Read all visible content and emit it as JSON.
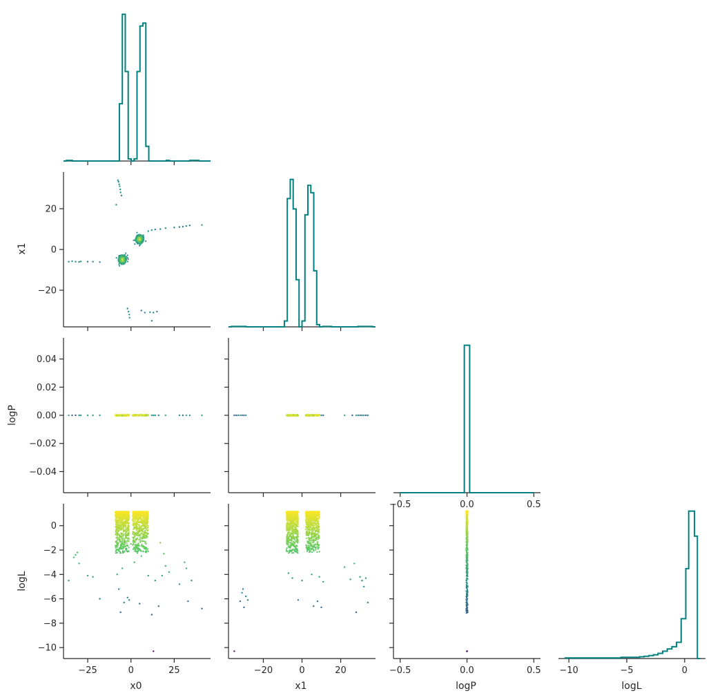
{
  "colors": {
    "histogram": "#00807f",
    "colormap": [
      "#440154",
      "#3b528b",
      "#21918c",
      "#5ec962",
      "#fde725"
    ]
  },
  "axis_labels": {
    "x0": "x0",
    "x1": "x1",
    "logP": "logP",
    "logL": "logL"
  },
  "chart_data": [
    {
      "type": "histogram",
      "panel": "x0-hist",
      "xlabel": "",
      "ylabel": "",
      "xlim": [
        -39,
        46
      ],
      "ticks_x": [
        -25,
        0,
        25
      ],
      "bins": {
        "edges": [
          -39.0,
          -37.3,
          -35.6,
          -33.9,
          -32.2,
          -30.5,
          -28.8,
          -27.1,
          -25.4,
          -23.7,
          -22.0,
          -20.3,
          -18.6,
          -16.9,
          -15.2,
          -13.5,
          -11.8,
          -10.1,
          -8.4,
          -6.7,
          -5.0,
          -3.3,
          -1.6,
          0.1,
          1.8,
          3.5,
          5.2,
          6.9,
          8.6,
          10.3,
          12.0,
          13.7,
          15.4,
          17.1,
          18.8,
          20.5,
          22.2,
          23.9,
          25.6,
          27.3,
          29.0,
          30.7,
          32.4,
          34.1,
          35.8,
          37.5,
          39.2,
          40.9,
          42.6,
          44.3,
          46.0
        ],
        "counts": [
          0,
          0.4,
          0.4,
          0,
          0,
          0,
          0,
          0,
          0,
          0,
          0,
          0,
          0,
          0,
          0,
          0,
          0,
          0,
          0,
          39,
          100,
          61,
          1.5,
          0,
          1.5,
          61,
          92,
          94,
          10,
          0,
          0,
          0,
          0,
          0,
          0,
          0.5,
          0,
          0,
          0,
          0,
          0,
          0,
          0,
          0.4,
          0.4,
          0.4,
          0,
          0,
          0,
          0
        ]
      }
    },
    {
      "type": "scatter",
      "panel": "x0-x1",
      "xlabel": "",
      "ylabel": "x1",
      "xlim": [
        -39,
        46
      ],
      "ylim": [
        -38,
        38
      ],
      "ticks_x": [
        -25,
        0,
        25
      ],
      "ticks_y": [
        -20,
        0,
        20
      ],
      "points": [
        [
          -7.5,
          34
        ],
        [
          -7.2,
          33.2
        ],
        [
          -6.8,
          32
        ],
        [
          -6.5,
          31
        ],
        [
          -6.2,
          29.5
        ],
        [
          -6,
          28
        ],
        [
          -5.5,
          26.5
        ],
        [
          -8.5,
          22
        ],
        [
          -36,
          -6
        ],
        [
          -34,
          -5.8
        ],
        [
          -32,
          -6
        ],
        [
          -30,
          -6.1
        ],
        [
          -29,
          -5.9
        ],
        [
          -25,
          -6
        ],
        [
          -22,
          -6
        ],
        [
          -18,
          -6.2
        ],
        [
          -2,
          -29
        ],
        [
          -1.5,
          -30.5
        ],
        [
          -1,
          -32
        ],
        [
          -0.8,
          -33.5
        ],
        [
          6,
          -30
        ],
        [
          8,
          -31
        ],
        [
          11,
          -30.8
        ],
        [
          13,
          -31
        ],
        [
          15,
          -30.5
        ],
        [
          12,
          -35
        ],
        [
          10,
          9
        ],
        [
          12,
          9.5
        ],
        [
          14,
          9.8
        ],
        [
          17,
          10
        ],
        [
          20,
          10.5
        ],
        [
          25,
          10.8
        ],
        [
          28,
          11
        ],
        [
          30,
          11.2
        ],
        [
          32,
          11.5
        ],
        [
          34,
          11.8
        ],
        [
          41,
          12
        ]
      ],
      "clusters": [
        {
          "center": [
            5,
            5
          ],
          "radius": 2.2
        },
        {
          "center": [
            -5,
            -5
          ],
          "radius": 2.2
        }
      ]
    },
    {
      "type": "histogram",
      "panel": "x1-hist",
      "xlabel": "",
      "ylabel": "",
      "xlim": [
        -38,
        38
      ],
      "ticks_x": [
        -20,
        0,
        20
      ],
      "bins": {
        "edges": [
          -38.0,
          -36.48,
          -34.96,
          -33.44,
          -31.92,
          -30.4,
          -28.88,
          -27.36,
          -25.84,
          -24.32,
          -22.8,
          -21.28,
          -19.76,
          -18.24,
          -16.72,
          -15.2,
          -13.68,
          -12.16,
          -10.64,
          -9.12,
          -7.6,
          -6.08,
          -4.56,
          -3.04,
          -1.52,
          0.0,
          1.52,
          3.04,
          4.56,
          6.08,
          7.6,
          9.12,
          10.64,
          12.16,
          13.68,
          15.2,
          16.72,
          18.24,
          19.76,
          21.28,
          22.8,
          24.32,
          25.84,
          27.36,
          28.88,
          30.4,
          31.92,
          33.44,
          34.96,
          36.48,
          38.0
        ],
        "counts": [
          0,
          0.3,
          0.3,
          0.3,
          0.3,
          0.3,
          0,
          0,
          0,
          0,
          0,
          0,
          0,
          0,
          0,
          0,
          0,
          0,
          0,
          4,
          87,
          100,
          80,
          32,
          0,
          4,
          76,
          96,
          91,
          38,
          1.5,
          0,
          0.3,
          0.3,
          0.3,
          0,
          0,
          0,
          0,
          0,
          0,
          0,
          0,
          0,
          0.3,
          0.3,
          0.3,
          0.3,
          0.3,
          0
        ]
      }
    },
    {
      "type": "scatter",
      "panel": "x0-logP",
      "xlabel": "",
      "ylabel": "logP",
      "xlim": [
        -39,
        46
      ],
      "ylim": [
        -0.055,
        0.055
      ],
      "ticks_x": [
        -25,
        0,
        25
      ],
      "ticks_y": [
        -0.04,
        -0.02,
        0.0,
        0.02,
        0.04
      ],
      "tick_labels_y": [
        "−0.04",
        "−0.02",
        "0.00",
        "0.02",
        "0.04"
      ],
      "strip_x_ranges": [
        [
          -9,
          -1
        ],
        [
          1,
          10
        ]
      ],
      "points_x": [
        -36,
        -34,
        -32,
        -30,
        -29,
        -25,
        -22,
        -18,
        -8.5,
        -7,
        -6,
        12,
        13,
        14,
        16,
        20,
        28,
        30,
        32,
        34,
        41
      ]
    },
    {
      "type": "scatter",
      "panel": "x1-logP",
      "xlabel": "",
      "ylabel": "",
      "xlim": [
        -38,
        38
      ],
      "ylim": [
        -0.055,
        0.055
      ],
      "ticks_x": [
        -20,
        0,
        20
      ],
      "ticks_y": [
        -0.04,
        -0.02,
        0.0,
        0.02,
        0.04
      ],
      "strip_x_ranges": [
        [
          -8,
          -2
        ],
        [
          2,
          9
        ]
      ],
      "points_x": [
        -35,
        -34,
        -33,
        -32,
        -31,
        -30,
        -29,
        10,
        11,
        22,
        26,
        28,
        29,
        30,
        31,
        32,
        33,
        34
      ]
    },
    {
      "type": "histogram",
      "panel": "logP-hist",
      "xlabel": "",
      "ylabel": "",
      "xlim": [
        -0.55,
        0.55
      ],
      "ticks_x": [
        -0.5,
        0.0,
        0.5
      ],
      "tick_labels_x": [
        "−0.5",
        "0.0",
        "0.5"
      ],
      "bins": {
        "edges": [
          -0.5,
          -0.02,
          0.02,
          0.5
        ],
        "counts": [
          0,
          100,
          0
        ]
      }
    },
    {
      "type": "scatter",
      "panel": "x0-logL",
      "xlabel": "x0",
      "ylabel": "logL",
      "xlim": [
        -39,
        46
      ],
      "ylim": [
        -10.9,
        1.8
      ],
      "ticks_x": [
        -25,
        0,
        25
      ],
      "ticks_y": [
        -10,
        -8,
        -6,
        -4,
        -2,
        0
      ],
      "tick_labels_x": [
        "−25",
        "0",
        "25"
      ],
      "tick_labels_y": [
        "−10",
        "−8",
        "−6",
        "−4",
        "−2",
        "0"
      ],
      "strip_x_ranges": [
        [
          -9,
          -1
        ],
        [
          1,
          10
        ]
      ],
      "points": [
        [
          -36,
          -4.5
        ],
        [
          -33,
          -2.6
        ],
        [
          -32,
          -2.4
        ],
        [
          -31,
          -2.2
        ],
        [
          -30,
          -3.1
        ],
        [
          -25,
          -4.1
        ],
        [
          -22,
          -4.2
        ],
        [
          -18,
          -6
        ],
        [
          -8,
          -4
        ],
        [
          -7,
          -5.2
        ],
        [
          -6,
          -7.1
        ],
        [
          -5,
          -3.5
        ],
        [
          -4,
          -6.3
        ],
        [
          -2,
          -5.9
        ],
        [
          -1,
          -6.1
        ],
        [
          0,
          -1.5
        ],
        [
          2,
          -3
        ],
        [
          5,
          -6.4
        ],
        [
          6,
          -2.5
        ],
        [
          10,
          -4.1
        ],
        [
          12,
          -7.3
        ],
        [
          13,
          -10.3
        ],
        [
          14,
          -4.5
        ],
        [
          16,
          -6.6
        ],
        [
          17,
          -1.4
        ],
        [
          18,
          -4.1
        ],
        [
          19,
          -2.3
        ],
        [
          20,
          -3.3
        ],
        [
          22,
          -3.8
        ],
        [
          28,
          -4.8
        ],
        [
          31,
          -3
        ],
        [
          32,
          -3.5
        ],
        [
          33,
          -6.2
        ],
        [
          35,
          -4.5
        ],
        [
          41,
          -6.8
        ]
      ]
    },
    {
      "type": "scatter",
      "panel": "x1-logL",
      "xlabel": "x1",
      "ylabel": "",
      "xlim": [
        -38,
        38
      ],
      "ylim": [
        -10.9,
        1.8
      ],
      "ticks_x": [
        -20,
        0,
        20
      ],
      "ticks_y": [
        -10,
        -8,
        -6,
        -4,
        -2,
        0
      ],
      "tick_labels_x": [
        "−20",
        "0",
        "20"
      ],
      "strip_x_ranges": [
        [
          -8,
          -2
        ],
        [
          2,
          9
        ]
      ],
      "points": [
        [
          -35,
          -10.3
        ],
        [
          -32,
          -6.2
        ],
        [
          -31,
          -5.5
        ],
        [
          -30.5,
          -5.2
        ],
        [
          -30,
          -6.7
        ],
        [
          -29,
          -5.8
        ],
        [
          -28,
          -6.1
        ],
        [
          -7,
          -3.9
        ],
        [
          -5,
          -4.3
        ],
        [
          -3,
          -2.1
        ],
        [
          -2,
          -6.1
        ],
        [
          0,
          -4.5
        ],
        [
          5,
          -4
        ],
        [
          6,
          -6.6
        ],
        [
          8,
          -6.2
        ],
        [
          9,
          -4.2
        ],
        [
          10,
          -6.7
        ],
        [
          11,
          -4.6
        ],
        [
          22,
          -3.4
        ],
        [
          25,
          -4.4
        ],
        [
          27,
          -3.1
        ],
        [
          28,
          -7.1
        ],
        [
          30,
          -4.2
        ],
        [
          31,
          -4.5
        ],
        [
          32,
          -5
        ],
        [
          33,
          -4.3
        ],
        [
          34,
          -6.3
        ]
      ]
    },
    {
      "type": "scatter",
      "panel": "logP-logL",
      "xlabel": "logP",
      "ylabel": "",
      "xlim": [
        -0.55,
        0.55
      ],
      "ylim": [
        -10.9,
        1.8
      ],
      "ticks_x": [
        -0.5,
        0.0,
        0.5
      ],
      "ticks_y": [
        -10,
        -8,
        -6,
        -4,
        -2,
        0
      ],
      "tick_labels_x": [
        "−0.5",
        "0.0",
        "0.5"
      ],
      "column_x": 0.0,
      "column_range": [
        -7.2,
        1.2
      ],
      "outlier": [
        0.0,
        -10.3
      ]
    },
    {
      "type": "histogram",
      "panel": "logL-hist",
      "xlabel": "logL",
      "ylabel": "",
      "xlim": [
        -10.9,
        1.8
      ],
      "ticks_x": [
        -10,
        -5,
        0
      ],
      "tick_labels_x": [
        "−10",
        "−5",
        "0"
      ],
      "bins": {
        "edges": [
          -10.3,
          -9.5,
          -8.7,
          -7.9,
          -7.1,
          -6.3,
          -5.5,
          -4.7,
          -4.3,
          -3.9,
          -3.5,
          -3.1,
          -2.7,
          -2.3,
          -1.9,
          -1.5,
          -1.1,
          -0.7,
          -0.3,
          0.1,
          0.35,
          0.6,
          0.85,
          1.1,
          1.35
        ],
        "counts": [
          0.4,
          0.4,
          0.4,
          0.4,
          0.4,
          0.4,
          0.8,
          0.8,
          0.8,
          1.2,
          1.5,
          2,
          2.5,
          3.5,
          5,
          6.5,
          8,
          11,
          27,
          61,
          100,
          100,
          83,
          0
        ]
      }
    }
  ]
}
